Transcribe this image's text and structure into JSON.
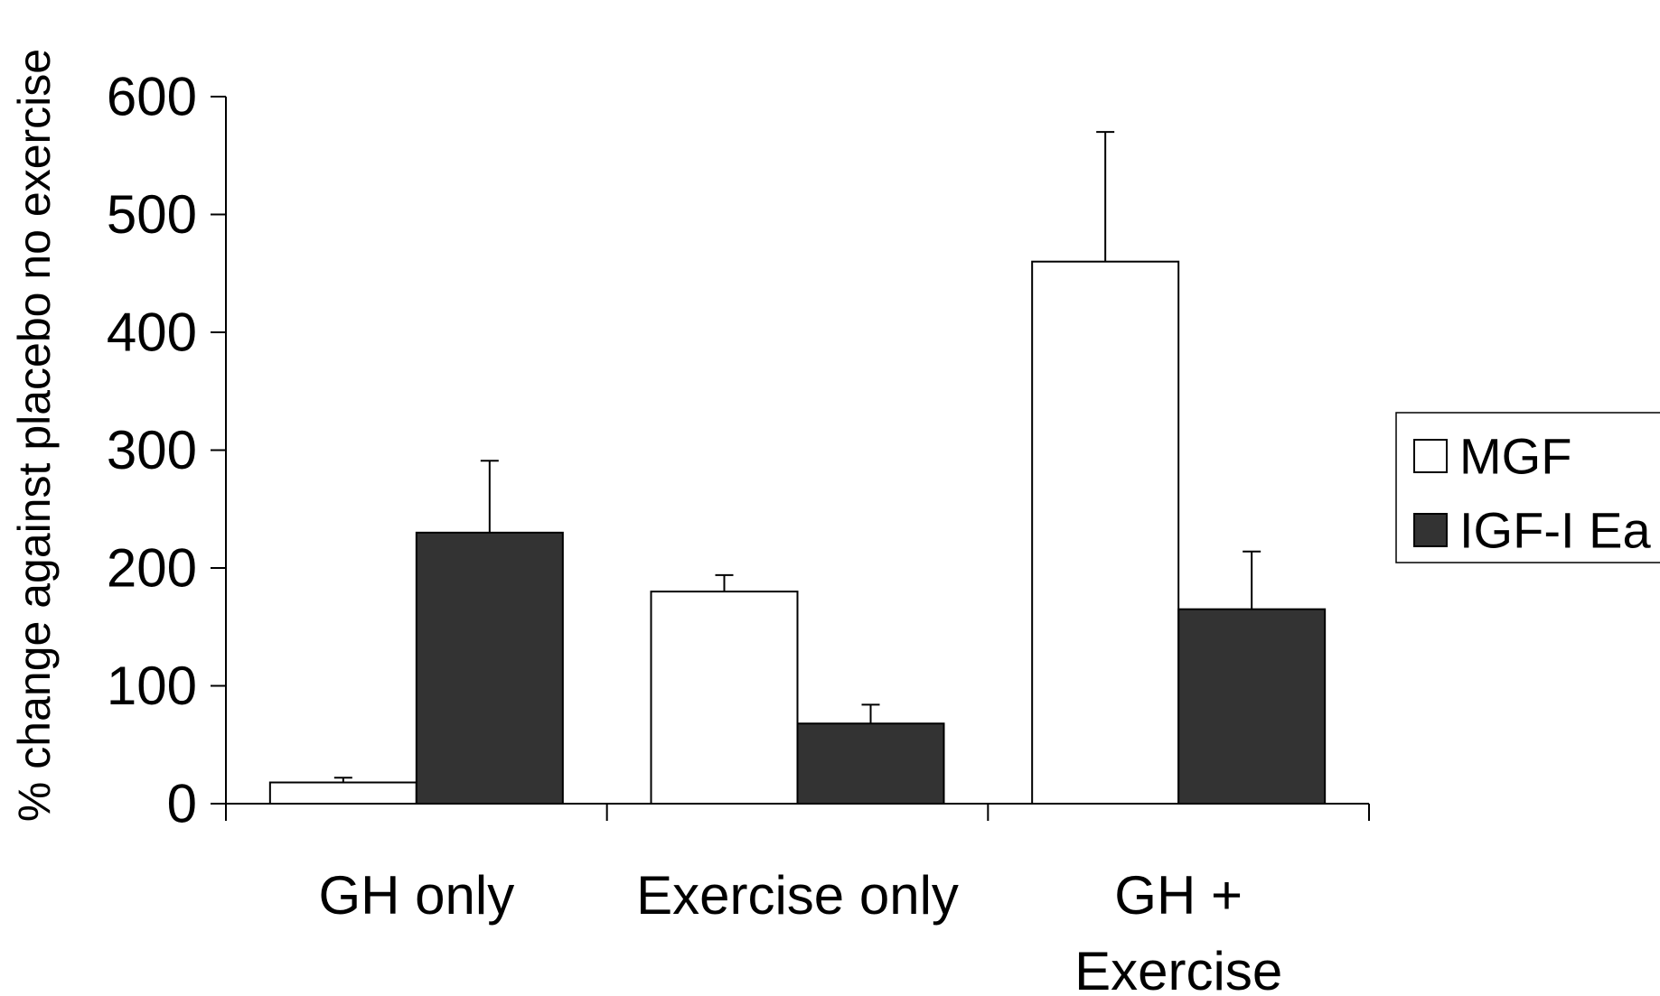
{
  "chart_data": {
    "type": "bar",
    "title": "",
    "xlabel": "",
    "ylabel": "% change against placebo no exercise",
    "ylim": [
      0,
      600
    ],
    "yticks": [
      0,
      100,
      200,
      300,
      400,
      500,
      600
    ],
    "grid": false,
    "legend_position": "right",
    "categories": [
      [
        "GH only"
      ],
      [
        "Exercise only"
      ],
      [
        "GH +",
        "Exercise"
      ]
    ],
    "series": [
      {
        "name": "MGF",
        "color": "#ffffff",
        "values": [
          18,
          180,
          460
        ],
        "errors": [
          4,
          14,
          110
        ]
      },
      {
        "name": "IGF-I Ea",
        "color": "#333333",
        "values": [
          230,
          68,
          165
        ],
        "errors": [
          61,
          16,
          49
        ]
      }
    ]
  }
}
